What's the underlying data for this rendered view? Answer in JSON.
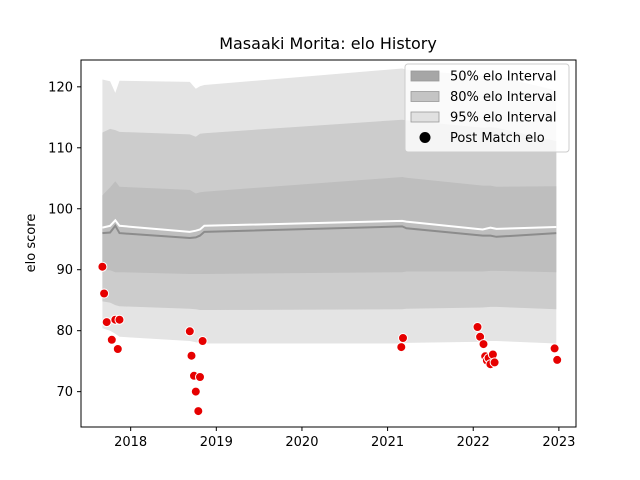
{
  "chart_data": {
    "type": "line",
    "title": "Masaaki Morita: elo History",
    "xlabel": "",
    "ylabel": "elo score",
    "xlim": [
      2017.42,
      2023.2
    ],
    "ylim": [
      64.2,
      124.4
    ],
    "xticks": [
      2018,
      2019,
      2020,
      2021,
      2022,
      2023
    ],
    "xtick_labels": [
      "2018",
      "2019",
      "2020",
      "2021",
      "2022",
      "2023"
    ],
    "yticks": [
      70,
      80,
      90,
      100,
      110,
      120
    ],
    "ytick_labels": [
      "70",
      "80",
      "90",
      "100",
      "110",
      "120"
    ],
    "grid": false,
    "legend_position": "top-right",
    "legend": [
      {
        "label": "50% elo Interval",
        "color": "#a6a6a6"
      },
      {
        "label": "80% elo Interval",
        "color": "#c4c4c4"
      },
      {
        "label": "95% elo Interval",
        "color": "#e1e1e1"
      },
      {
        "label": "Post Match elo",
        "color": "#000000"
      }
    ],
    "colors": {
      "band95": "#e4e4e4",
      "band80": "#cccccc",
      "band50": "#bebebe",
      "mean_line": "#ffffff",
      "median_line": "#8c8c8c",
      "points": "#e60000"
    },
    "intervals": {
      "x": [
        2017.67,
        2017.76,
        2017.82,
        2017.87,
        2018.69,
        2018.76,
        2018.81,
        2018.86,
        2021.17,
        2021.22,
        2022.11,
        2022.2,
        2022.27,
        2022.97
      ],
      "p95_low": [
        80.4,
        80.0,
        79.5,
        79.0,
        78.3,
        78.1,
        78.0,
        77.9,
        77.9,
        78.0,
        78.2,
        78.3,
        78.3,
        77.9
      ],
      "p95_high": [
        121.2,
        120.9,
        119.0,
        121.0,
        120.8,
        119.7,
        120.1,
        120.3,
        123.0,
        122.8,
        121.8,
        121.9,
        121.8,
        119.4
      ],
      "p80_low": [
        84.8,
        84.6,
        84.2,
        84.0,
        83.6,
        83.5,
        83.4,
        83.4,
        83.5,
        83.6,
        83.8,
        83.9,
        83.9,
        83.5
      ],
      "p80_high": [
        112.5,
        113.1,
        112.9,
        112.6,
        112.2,
        111.8,
        112.3,
        112.4,
        114.6,
        114.5,
        113.3,
        113.4,
        113.3,
        111.1
      ],
      "p50_low": [
        89.9,
        89.9,
        89.6,
        89.6,
        89.3,
        89.3,
        89.3,
        89.3,
        89.6,
        89.7,
        89.7,
        89.8,
        89.8,
        89.6
      ],
      "p50_high": [
        102.2,
        103.5,
        104.5,
        103.6,
        103.1,
        102.5,
        102.7,
        102.8,
        105.2,
        105.1,
        103.8,
        103.8,
        103.6,
        103.7
      ]
    },
    "series": [
      {
        "x": [
          2017.67,
          2017.76,
          2017.82,
          2017.87,
          2018.69,
          2018.76,
          2018.81,
          2018.86,
          2021.17,
          2021.22,
          2022.11,
          2022.2,
          2022.27,
          2022.97
        ],
        "values": [
          96.9,
          97.2,
          98.1,
          97.2,
          96.2,
          96.4,
          96.6,
          97.2,
          98.0,
          97.9,
          96.6,
          96.9,
          96.7,
          97.0
        ]
      },
      {
        "x": [
          2017.67,
          2017.76,
          2017.82,
          2017.87,
          2018.69,
          2018.76,
          2018.81,
          2018.86,
          2021.17,
          2021.22,
          2022.11,
          2022.2,
          2022.27,
          2022.97
        ],
        "values": [
          96.0,
          96.1,
          97.2,
          96.0,
          95.2,
          95.3,
          95.6,
          96.2,
          97.1,
          96.8,
          95.6,
          95.6,
          95.4,
          96.0
        ]
      }
    ],
    "points": {
      "x": [
        2017.67,
        2017.69,
        2017.72,
        2017.78,
        2017.82,
        2017.85,
        2017.87,
        2018.69,
        2018.71,
        2018.74,
        2018.76,
        2018.79,
        2018.81,
        2018.84,
        2021.16,
        2021.18,
        2022.05,
        2022.08,
        2022.12,
        2022.14,
        2022.16,
        2022.18,
        2022.2,
        2022.23,
        2022.25,
        2022.95,
        2022.98
      ],
      "y": [
        90.5,
        86.1,
        81.4,
        78.5,
        81.8,
        77.0,
        81.8,
        79.9,
        75.9,
        72.6,
        70.0,
        66.8,
        72.4,
        78.3,
        77.3,
        78.8,
        80.6,
        79.0,
        77.8,
        75.8,
        75.1,
        75.5,
        74.5,
        76.1,
        74.8,
        77.1,
        75.2
      ]
    }
  }
}
